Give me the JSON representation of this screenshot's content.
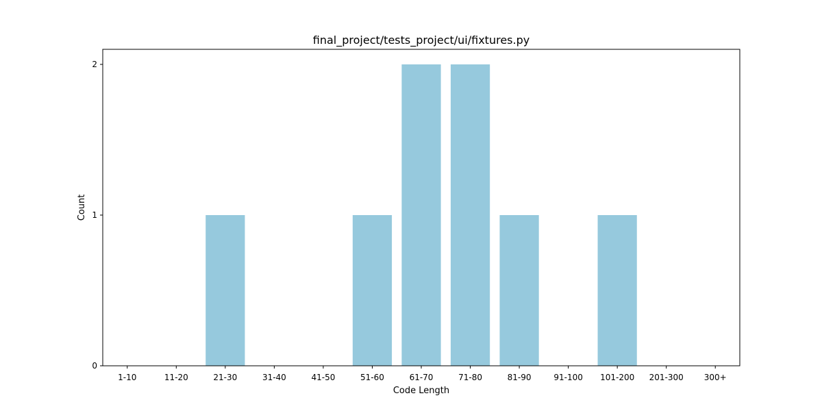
{
  "chart_data": {
    "type": "bar",
    "title": "final_project/tests_project/ui/fixtures.py",
    "xlabel": "Code Length",
    "ylabel": "Count",
    "categories": [
      "1-10",
      "11-20",
      "21-30",
      "31-40",
      "41-50",
      "51-60",
      "61-70",
      "71-80",
      "81-90",
      "91-100",
      "101-200",
      "201-300",
      "300+"
    ],
    "values": [
      0,
      0,
      1,
      0,
      0,
      1,
      2,
      2,
      1,
      0,
      1,
      0,
      0
    ],
    "ylim": [
      0,
      2.1
    ],
    "yticks": [
      0,
      1,
      2
    ],
    "grid": false,
    "bar_color": "#96c9dd"
  }
}
